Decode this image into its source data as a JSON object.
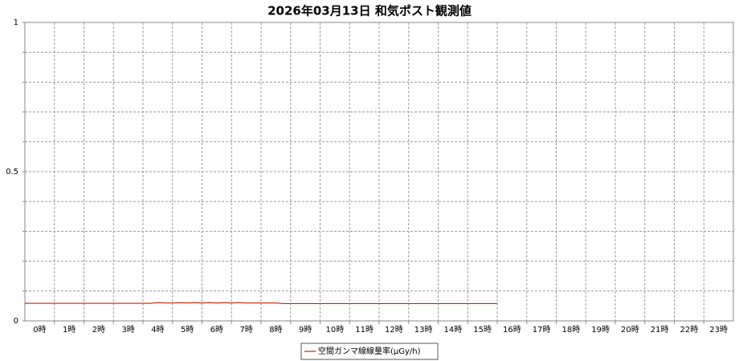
{
  "chart_data": {
    "type": "line",
    "title": "2026年03月13日 和気ポスト観測値",
    "xlim": [
      0,
      24
    ],
    "xticks": [
      {
        "value": 0.5,
        "label": "0時"
      },
      {
        "value": 1.5,
        "label": "1時"
      },
      {
        "value": 2.5,
        "label": "2時"
      },
      {
        "value": 3.5,
        "label": "3時"
      },
      {
        "value": 4.5,
        "label": "4時"
      },
      {
        "value": 5.5,
        "label": "5時"
      },
      {
        "value": 6.5,
        "label": "6時"
      },
      {
        "value": 7.5,
        "label": "7時"
      },
      {
        "value": 8.5,
        "label": "8時"
      },
      {
        "value": 9.5,
        "label": "9時"
      },
      {
        "value": 10.5,
        "label": "10時"
      },
      {
        "value": 11.5,
        "label": "11時"
      },
      {
        "value": 12.5,
        "label": "12時"
      },
      {
        "value": 13.5,
        "label": "13時"
      },
      {
        "value": 14.5,
        "label": "14時"
      },
      {
        "value": 15.5,
        "label": "15時"
      },
      {
        "value": 16.5,
        "label": "16時"
      },
      {
        "value": 17.5,
        "label": "17時"
      },
      {
        "value": 18.5,
        "label": "18時"
      },
      {
        "value": 19.5,
        "label": "19時"
      },
      {
        "value": 20.5,
        "label": "20時"
      },
      {
        "value": 21.5,
        "label": "21時"
      },
      {
        "value": 22.5,
        "label": "22時"
      },
      {
        "value": 23.5,
        "label": "23時"
      }
    ],
    "x_minor_ticks": [
      1,
      2,
      3,
      4,
      5,
      6,
      7,
      8,
      9,
      10,
      11,
      12,
      13,
      14,
      15,
      16,
      17,
      18,
      19,
      20,
      21,
      22,
      23
    ],
    "ylim": [
      0,
      1
    ],
    "yticks": [
      0,
      0.5,
      1
    ],
    "y_minor_ticks": [
      0.1,
      0.2,
      0.3,
      0.4,
      0.6,
      0.7,
      0.8,
      0.9
    ],
    "grid": true,
    "x": [
      0,
      0.25,
      0.5,
      0.75,
      1,
      1.25,
      1.5,
      1.75,
      2,
      2.25,
      2.5,
      2.75,
      3,
      3.25,
      3.5,
      3.75,
      4,
      4.25,
      4.5,
      4.75,
      5,
      5.25,
      5.5,
      5.75,
      6,
      6.25,
      6.5,
      6.75,
      7,
      7.25,
      7.5,
      7.75,
      8,
      8.25,
      8.5,
      8.75,
      9,
      9.25,
      9.5,
      9.75,
      10,
      10.25,
      10.5,
      10.75,
      11,
      11.25,
      11.5,
      11.75,
      12,
      12.25,
      12.5,
      12.75,
      13,
      13.25,
      13.5,
      13.75,
      14,
      14.25,
      14.5,
      14.75,
      15,
      15.25,
      15.5,
      15.75,
      16
    ],
    "series": [
      {
        "name": "空間ガンマ線線量率(μGy/h)",
        "color": "#cc2200",
        "values": [
          0.059,
          0.059,
          0.059,
          0.059,
          0.059,
          0.059,
          0.059,
          0.059,
          0.059,
          0.059,
          0.059,
          0.059,
          0.059,
          0.059,
          0.059,
          0.059,
          0.059,
          0.059,
          0.061,
          0.06,
          0.06,
          0.061,
          0.06,
          0.061,
          0.06,
          0.061,
          0.06,
          0.061,
          0.06,
          0.061,
          0.06,
          0.06,
          0.06,
          0.06,
          0.06,
          0.058,
          0.058,
          0.058,
          0.058,
          0.058,
          0.058,
          0.058,
          0.058,
          0.058,
          0.058,
          0.058,
          0.058,
          0.058,
          0.058,
          0.058,
          0.058,
          0.058,
          0.058,
          0.058,
          0.058,
          0.058,
          0.058,
          0.058,
          0.058,
          0.058,
          0.058,
          0.058,
          0.058,
          0.058,
          0.058
        ]
      }
    ]
  }
}
